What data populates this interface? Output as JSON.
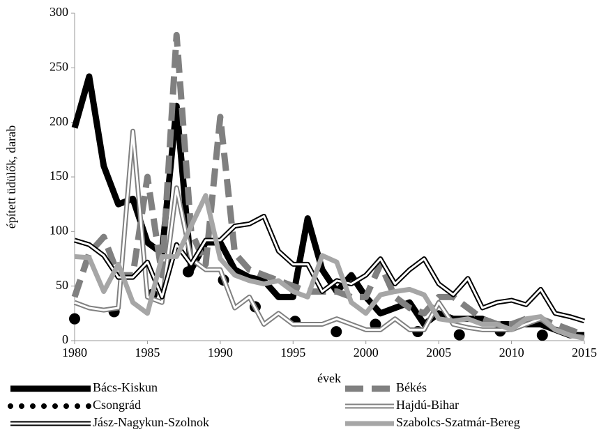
{
  "chart_data": {
    "type": "line",
    "x_label": "évek",
    "y_label": "épített üdülők, darab",
    "x": [
      1980,
      1981,
      1982,
      1983,
      1984,
      1985,
      1986,
      1987,
      1988,
      1989,
      1990,
      1991,
      1992,
      1993,
      1994,
      1995,
      1996,
      1997,
      1998,
      1999,
      2000,
      2001,
      2002,
      2003,
      2004,
      2005,
      2006,
      2007,
      2008,
      2009,
      2010,
      2011,
      2012,
      2013,
      2014,
      2015
    ],
    "xlim": [
      1980,
      2015
    ],
    "xticks": [
      1980,
      1985,
      1990,
      1995,
      2000,
      2005,
      2010,
      2015
    ],
    "ylim": [
      0,
      300
    ],
    "yticks": [
      0,
      50,
      100,
      150,
      200,
      250,
      300
    ],
    "series": [
      {
        "name": "Bács-Kiskun",
        "color": "#000000",
        "line_style": "solid",
        "width": 9,
        "values": [
          195,
          242,
          160,
          125,
          130,
          90,
          80,
          215,
          65,
          90,
          90,
          65,
          58,
          55,
          40,
          40,
          112,
          65,
          45,
          60,
          40,
          25,
          30,
          35,
          15,
          25,
          20,
          20,
          20,
          15,
          15,
          15,
          15,
          10,
          5,
          5
        ]
      },
      {
        "name": "Békés",
        "color": "#808080",
        "line_style": "dashed",
        "width": 9,
        "values": [
          40,
          80,
          95,
          60,
          60,
          150,
          60,
          280,
          100,
          70,
          205,
          80,
          65,
          60,
          55,
          50,
          45,
          45,
          45,
          40,
          40,
          70,
          40,
          30,
          25,
          40,
          40,
          30,
          20,
          15,
          15,
          20,
          20,
          15,
          10,
          5
        ]
      },
      {
        "name": "Csongrád",
        "color": "#000000",
        "line_style": "dotted",
        "width": 16,
        "values": [
          20,
          20,
          18,
          30,
          40,
          41,
          45,
          55,
          65,
          70,
          60,
          40,
          35,
          25,
          20,
          18,
          16,
          15,
          8,
          5,
          15,
          15,
          14,
          10,
          7,
          5,
          2,
          10,
          13,
          10,
          5,
          3,
          5,
          5,
          3,
          2
        ]
      },
      {
        "name": "Hajdú-Bihar",
        "color": "#808080",
        "line_style": "double",
        "width": 7,
        "values": [
          35,
          30,
          28,
          30,
          192,
          40,
          35,
          140,
          75,
          65,
          65,
          30,
          40,
          15,
          25,
          15,
          15,
          15,
          20,
          15,
          10,
          10,
          20,
          10,
          10,
          35,
          15,
          12,
          10,
          10,
          10,
          15,
          20,
          10,
          5,
          3
        ]
      },
      {
        "name": "Jász-Nagykun-Szolnok",
        "color": "#000000",
        "line_style": "double",
        "width": 7,
        "values": [
          92,
          88,
          78,
          58,
          58,
          72,
          40,
          88,
          70,
          92,
          92,
          105,
          107,
          114,
          82,
          70,
          70,
          45,
          55,
          52,
          60,
          75,
          52,
          65,
          75,
          52,
          42,
          57,
          30,
          35,
          37,
          33,
          47,
          25,
          22,
          18
        ]
      },
      {
        "name": "Szabolcs-Szatmár-Bereg",
        "color": "#a6a6a6",
        "line_style": "solid",
        "width": 7,
        "values": [
          77,
          76,
          45,
          70,
          35,
          25,
          77,
          77,
          105,
          133,
          75,
          60,
          55,
          52,
          55,
          45,
          40,
          78,
          72,
          35,
          25,
          42,
          45,
          47,
          42,
          20,
          18,
          20,
          15,
          15,
          10,
          20,
          22,
          10,
          5,
          2
        ]
      }
    ]
  }
}
